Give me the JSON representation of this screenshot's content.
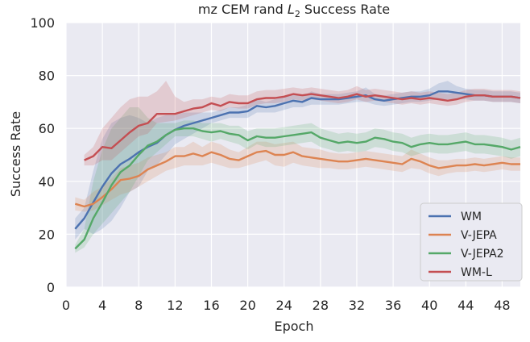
{
  "chart_data": {
    "type": "line",
    "title": "mz CEM rand ",
    "title_math": "L",
    "title_sub": "2",
    "title_suffix": " Success Rate",
    "xlabel": "Epoch",
    "ylabel": "Success Rate",
    "xlim": [
      0,
      50
    ],
    "ylim": [
      0,
      100
    ],
    "xticks": [
      0,
      4,
      8,
      12,
      16,
      20,
      24,
      28,
      32,
      36,
      40,
      44,
      48
    ],
    "yticks": [
      0,
      20,
      40,
      60,
      80,
      100
    ],
    "grid": true,
    "legend_position": "lower-right",
    "background": "#eaeaf2",
    "series": [
      {
        "name": "WM",
        "color": "#4c72b0",
        "x": [
          1,
          2,
          3,
          4,
          5,
          6,
          7,
          8,
          9,
          10,
          11,
          12,
          13,
          14,
          15,
          16,
          17,
          18,
          19,
          20,
          21,
          22,
          23,
          24,
          25,
          26,
          27,
          28,
          29,
          30,
          31,
          32,
          33,
          34,
          35,
          36,
          37,
          38,
          39,
          40,
          41,
          42,
          43,
          44,
          45,
          46,
          47,
          48,
          49,
          50
        ],
        "values": [
          22,
          26,
          32,
          38,
          43,
          46.5,
          48.5,
          51,
          53,
          54.5,
          57.5,
          59.5,
          61,
          62,
          63,
          64,
          65,
          66,
          66,
          66.5,
          68.5,
          68,
          68.5,
          69.5,
          70.5,
          70,
          71.5,
          71,
          71,
          71,
          71.5,
          72,
          72.5,
          71,
          70.5,
          71,
          71.5,
          72,
          72,
          72.5,
          74,
          74,
          73.5,
          73,
          72.5,
          72.5,
          72,
          72,
          72,
          71.5
        ],
        "lower": [
          18,
          22,
          20,
          22,
          25,
          30,
          36,
          38,
          44,
          46,
          50,
          54,
          56,
          58,
          60,
          62,
          63,
          64,
          64,
          64,
          66,
          66,
          66,
          67,
          68,
          68,
          69,
          69,
          69,
          69,
          69.5,
          70,
          70,
          69,
          68.5,
          69,
          69.5,
          70,
          70,
          70.5,
          71,
          71,
          71,
          71,
          70.5,
          70.5,
          70,
          70,
          70,
          69.5
        ],
        "upper": [
          26,
          30,
          44,
          56,
          62,
          64,
          65,
          64,
          62,
          64,
          65,
          65,
          66,
          66,
          66,
          66,
          67,
          68,
          68,
          69,
          71,
          70,
          71,
          72,
          73,
          72,
          74,
          73,
          73,
          73,
          73.5,
          74,
          75.5,
          73,
          72.5,
          73,
          73.5,
          74,
          74,
          75,
          77,
          78,
          76,
          75,
          74.5,
          74.5,
          74,
          74,
          74,
          73.5
        ]
      },
      {
        "name": "V-JEPA",
        "color": "#dd8452",
        "x": [
          1,
          2,
          3,
          4,
          5,
          6,
          7,
          8,
          9,
          10,
          11,
          12,
          13,
          14,
          15,
          16,
          17,
          18,
          19,
          20,
          21,
          22,
          23,
          24,
          25,
          26,
          27,
          28,
          29,
          30,
          31,
          32,
          33,
          34,
          35,
          36,
          37,
          38,
          39,
          40,
          41,
          42,
          43,
          44,
          45,
          46,
          47,
          48,
          49,
          50
        ],
        "values": [
          31.5,
          30.5,
          31.5,
          34,
          37,
          40.5,
          41,
          42,
          44.5,
          46,
          47.5,
          49.5,
          49.5,
          50.5,
          49.5,
          51,
          50,
          48.5,
          48,
          49.5,
          51,
          51.5,
          50,
          50,
          51,
          49.5,
          49,
          48.5,
          48,
          47.5,
          47.5,
          48,
          48.5,
          48,
          47.5,
          47,
          46.5,
          48.5,
          47.5,
          46,
          45,
          45.5,
          46,
          46,
          46.5,
          46,
          46.5,
          47,
          46.5,
          46.5
        ],
        "lower": [
          29,
          28.5,
          29,
          31,
          33,
          35,
          36,
          38,
          40,
          42,
          44,
          45,
          46,
          46,
          46,
          47,
          46,
          45,
          45,
          46,
          47,
          48,
          46,
          45.5,
          47,
          46,
          45.5,
          45,
          45,
          44.5,
          44.5,
          45,
          45.5,
          45,
          44.5,
          44,
          43.5,
          45,
          44.5,
          43,
          42,
          43,
          43.5,
          43.5,
          44,
          43.5,
          44,
          44.5,
          44,
          44
        ],
        "upper": [
          34,
          33,
          36,
          38,
          41,
          45,
          46,
          47,
          49,
          50,
          51,
          53,
          53,
          55,
          53,
          55,
          54,
          52,
          51,
          53,
          55,
          55,
          54,
          54.5,
          55,
          53,
          52.5,
          52,
          51,
          50.5,
          50.5,
          51,
          51.5,
          51,
          50.5,
          50,
          49.5,
          52,
          50.5,
          49,
          48,
          48,
          48.5,
          48.5,
          49,
          48.5,
          49,
          49.5,
          49,
          49
        ]
      },
      {
        "name": "V-JEPA2",
        "color": "#55a868",
        "x": [
          1,
          2,
          3,
          4,
          5,
          6,
          7,
          8,
          9,
          10,
          11,
          12,
          13,
          14,
          15,
          16,
          17,
          18,
          19,
          20,
          21,
          22,
          23,
          24,
          25,
          26,
          27,
          28,
          29,
          30,
          31,
          32,
          33,
          34,
          35,
          36,
          37,
          38,
          39,
          40,
          41,
          42,
          43,
          44,
          45,
          46,
          47,
          48,
          49,
          50
        ],
        "values": [
          14.5,
          18,
          26,
          32,
          38.5,
          43.5,
          46,
          50,
          53.5,
          55,
          57.5,
          59.5,
          60,
          60,
          59,
          58.5,
          59,
          58,
          57.5,
          55.5,
          57,
          56.5,
          56.5,
          57,
          57.5,
          58,
          58.5,
          56.5,
          55.5,
          54.5,
          55,
          54.5,
          55,
          56.5,
          56,
          55,
          54.5,
          53,
          54,
          54.5,
          54,
          54,
          54.5,
          55,
          54,
          54,
          53.5,
          53,
          52,
          53
        ],
        "lower": [
          13,
          15,
          20,
          24,
          28,
          32,
          36,
          42,
          48,
          51,
          54,
          57,
          57,
          57,
          56,
          55,
          56,
          55,
          54,
          52,
          54,
          53,
          53,
          53.5,
          54,
          54.5,
          55,
          53,
          52,
          51,
          51.5,
          51,
          51.5,
          53,
          52.5,
          51.5,
          51,
          49.5,
          50.5,
          51,
          50.5,
          50.5,
          51,
          51.5,
          50.5,
          50.5,
          50,
          49.5,
          48.5,
          49.5
        ],
        "upper": [
          16,
          22,
          40,
          52,
          60,
          64,
          68,
          68,
          64,
          62,
          62,
          62,
          63,
          63,
          62,
          62,
          62,
          61,
          61,
          59,
          60,
          60,
          60,
          60.5,
          61,
          61.5,
          62,
          60,
          59,
          58,
          58.5,
          58,
          58.5,
          60,
          59.5,
          58.5,
          58,
          56.5,
          57.5,
          58,
          57.5,
          57.5,
          58,
          58.5,
          57.5,
          57.5,
          57,
          56.5,
          55.5,
          56.5
        ]
      },
      {
        "name": "WM-L",
        "color": "#c44e52",
        "x": [
          2,
          3,
          4,
          5,
          6,
          7,
          8,
          9,
          10,
          11,
          12,
          13,
          14,
          15,
          16,
          17,
          18,
          19,
          20,
          21,
          22,
          23,
          24,
          25,
          26,
          27,
          28,
          29,
          30,
          31,
          32,
          33,
          34,
          35,
          36,
          37,
          38,
          39,
          40,
          41,
          42,
          43,
          44,
          45,
          46,
          47,
          48,
          49,
          50
        ],
        "values": [
          48,
          49.5,
          53,
          52.5,
          55.5,
          58.5,
          61,
          62,
          65.5,
          65.5,
          65.5,
          66.5,
          67.5,
          68,
          69.5,
          68.5,
          70,
          69.5,
          69.5,
          71,
          71.5,
          71.5,
          72,
          73,
          72.5,
          73,
          72.5,
          72,
          71.5,
          72,
          73,
          72,
          72.5,
          72,
          71.5,
          71,
          71.5,
          71,
          71.5,
          71,
          70.5,
          71,
          72,
          72.5,
          72.5,
          72,
          72,
          72,
          71.5
        ],
        "lower": [
          46,
          46,
          48,
          48,
          51,
          54,
          57,
          58,
          62,
          62.5,
          63,
          64,
          65,
          66,
          67,
          66.5,
          68,
          67.5,
          67.5,
          69,
          69.5,
          69.5,
          70,
          71,
          70.5,
          71,
          70.5,
          70,
          69.5,
          70,
          71,
          70,
          70.5,
          70,
          69.5,
          69,
          69.5,
          69,
          69.5,
          69,
          68.5,
          69,
          70,
          70.5,
          70.5,
          70,
          70,
          70,
          69.5
        ],
        "upper": [
          50,
          53,
          60,
          64,
          68,
          71,
          72,
          72,
          74,
          78,
          72,
          70,
          71,
          71,
          72,
          71.5,
          73,
          72.5,
          72.5,
          74,
          74.5,
          74.5,
          75,
          75.5,
          75,
          75.5,
          75,
          74.5,
          74,
          74.5,
          76,
          74.5,
          75,
          74.5,
          74,
          73.5,
          74,
          73.5,
          74,
          73.5,
          73,
          73.5,
          74.5,
          75,
          75,
          74.5,
          74.5,
          74.5,
          74
        ]
      }
    ]
  }
}
